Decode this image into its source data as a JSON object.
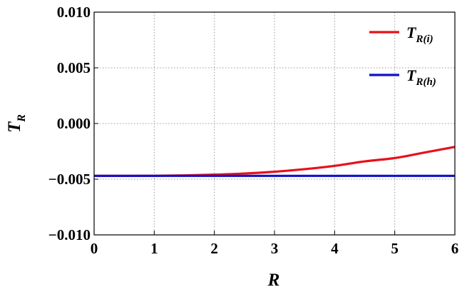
{
  "chart_data": {
    "type": "line",
    "title": "",
    "xlabel": {
      "main": "R",
      "sub": ""
    },
    "ylabel": {
      "main": "T",
      "sub": "R"
    },
    "xlim": [
      0,
      6
    ],
    "ylim": [
      -0.01,
      0.01
    ],
    "x_ticks": [
      0,
      1,
      2,
      3,
      4,
      5,
      6
    ],
    "x_tick_labels": [
      "0",
      "1",
      "2",
      "3",
      "4",
      "5",
      "6"
    ],
    "y_ticks": [
      0.01,
      0.005,
      0.0,
      -0.005,
      -0.01
    ],
    "y_tick_labels": [
      "0.010",
      "0.005",
      "0.000",
      "−0.005",
      "−0.010"
    ],
    "grid": true,
    "legend_position": "top-right",
    "series": [
      {
        "name": {
          "main": "T",
          "sub": "R(i)"
        },
        "color": "#e8101a",
        "x": [
          0,
          0.5,
          1,
          1.5,
          2,
          2.5,
          3,
          3.5,
          4,
          4.5,
          5,
          5.5,
          6
        ],
        "y": [
          -0.0047,
          -0.0047,
          -0.00469,
          -0.00466,
          -0.00459,
          -0.00449,
          -0.00433,
          -0.0041,
          -0.0038,
          -0.0034,
          -0.0031,
          -0.0026,
          -0.0021
        ]
      },
      {
        "name": {
          "main": "T",
          "sub": "R(h)"
        },
        "color": "#1010c8",
        "x": [
          0,
          6
        ],
        "y": [
          -0.0047,
          -0.0047
        ]
      }
    ]
  }
}
